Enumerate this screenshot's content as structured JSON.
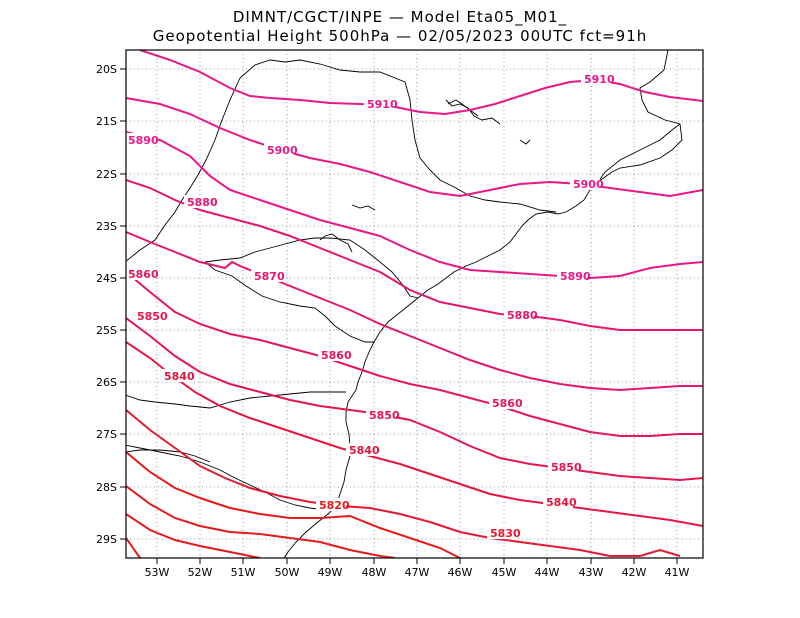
{
  "title_line1": "DIMNT/CGCT/INPE  —   Model Eta05_M01_",
  "title_line2": "Geopotential Height 500hPa —   02/05/2023 00UTC fct=91h",
  "y_ticks": [
    "20S",
    "21S",
    "22S",
    "23S",
    "24S",
    "25S",
    "26S",
    "27S",
    "28S",
    "29S"
  ],
  "x_ticks": [
    "53W",
    "52W",
    "51W",
    "50W",
    "49W",
    "48W",
    "47W",
    "46W",
    "45W",
    "44W",
    "43W",
    "42W",
    "41W"
  ],
  "contour_labels": [
    "5910",
    "5910",
    "5900",
    "5900",
    "5890",
    "5890",
    "5880",
    "5880",
    "5870",
    "5860",
    "5860",
    "5860",
    "5850",
    "5850",
    "5850",
    "5840",
    "5840",
    "5840",
    "5830",
    "5820"
  ],
  "colors": {
    "high": "#e8178a",
    "mid": "#e4164e",
    "low": "#e51a1a",
    "map": "#000000",
    "grid": "#9a9a9a"
  }
}
